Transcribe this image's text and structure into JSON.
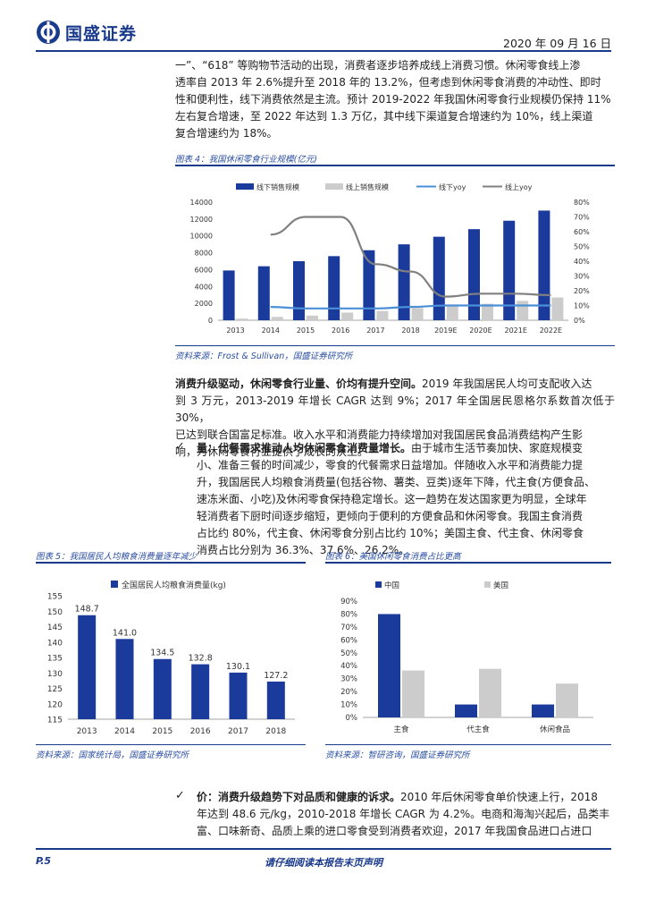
{
  "header": {
    "company": "国盛证券",
    "date": "2020 年 09 月 16 日"
  },
  "intro_paragraph": [
    "一”、“618” 等购物节活动的出现，消费者逐步培养成线上消费习惯。休闲零食线上渗",
    "透率自 2013 年 2.6%提升至 2018 年的 13.2%，但考虑到休闲零食消费的冲动性、即时",
    "性和便利性，线下消费依然是主流。预计 2019-2022 年我国休闲零食行业规模仍保持 11%",
    "左右复合增速，至 2022 年达到 1.3 万亿，其中线下渠道复合增速约为 10%，线上渠道",
    "复合增速约为 18%。"
  ],
  "figure4": {
    "title": "图表 4：我国休闲零食行业规模(亿元)",
    "source": "资料来源：Frost & Sullivan，国盛证券研究所"
  },
  "para_consumption": {
    "lead": "消费升级驱动，休闲零食行业量、价均有提升空间。",
    "lines": [
      "2019 年我国居民人均可支配收入达",
      "到 3 万元，2013-2019 年增长 CAGR 达到 9%；2017 年全国居民恩格尔系数首次低于 30%，",
      "已达到联合国富足标准。收入水平和消费能力持续增加对我国居民食品消费结构产生影",
      "响，为休闲零食行业提供了成长的沃土。"
    ]
  },
  "bullet_volume": {
    "check": "✓",
    "lead": "量：代餐需求推动人均休闲零食消费量增长。",
    "lines": [
      "由于城市生活节奏加快、家庭规模变",
      "小、准备三餐的时间减少，零食的代餐需求日益增加。伴随收入水平和消费能力提",
      "升，我国居民人均粮食消费量(包括谷物、薯类、豆类)逐年下降，代主食(方便食品、",
      "速冻米面、小吃)及休闲零食保持稳定增长。这一趋势在发达国家更为明显，全球年",
      "轻消费者下厨时间逐步缩短，更倾向于便利的方便食品和休闲零食。我国主食消费",
      "占比约 80%，代主食、休闲零食分别占比约 10%；美国主食、代主食、休闲零食",
      "消费占比分别为 36.3%、37.6%、26.2%。"
    ]
  },
  "figure5": {
    "title": "图表 5：我国居民人均粮食消费量逐年减少",
    "source": "资料来源：国家统计局，国盛证券研究所"
  },
  "figure6": {
    "title": "图表 6：美国休闲零食消费占比更高",
    "source": "资料来源：智研咨询，国盛证券研究所"
  },
  "bullet_price": {
    "check": "✓",
    "lead": "价：消费升级趋势下对品质和健康的诉求。",
    "lines": [
      "2010 年后休闲零食单价快速上行，2018",
      "年达到 48.6 元/kg，2010-2018 年增长 CAGR 为 4.2%。电商和海淘兴起后，品类丰",
      "富、口味新奇、品质上乘的进口零食受到消费者欢迎，2017 年我国食品进口占进口"
    ]
  },
  "footer": {
    "page": "P.5",
    "note": "请仔细阅读本报告末页声明"
  },
  "chart_data": [
    {
      "type": "bar",
      "categories": [
        "2013",
        "2014",
        "2015",
        "2016",
        "2017",
        "2018",
        "2019E",
        "2020E",
        "2021E",
        "2022E"
      ],
      "series": [
        {
          "name": "线下销售规模",
          "type": "bar",
          "axis": "left",
          "color": "#1a3a9c",
          "values": [
            5900,
            6400,
            7000,
            7600,
            8300,
            9000,
            9900,
            10800,
            11800,
            13000
          ]
        },
        {
          "name": "线上销售规模",
          "type": "bar",
          "axis": "left",
          "color": "#cccccc",
          "values": [
            200,
            400,
            550,
            900,
            1100,
            1450,
            1700,
            1950,
            2300,
            2700
          ]
        },
        {
          "name": "线下yoy",
          "type": "line",
          "axis": "right",
          "color": "#4a8fd8",
          "x": [
            2014,
            2015,
            2016,
            2017,
            2018,
            2019,
            2020,
            2021,
            2022
          ],
          "values": [
            9,
            8,
            8,
            8,
            9,
            10,
            10,
            10,
            10
          ]
        },
        {
          "name": "线上yoy",
          "type": "line",
          "axis": "right",
          "color": "#808080",
          "x": [
            2014,
            2015,
            2016,
            2017,
            2018,
            2019,
            2020,
            2021,
            2022
          ],
          "values": [
            58,
            70,
            70,
            38,
            33,
            16,
            18,
            18,
            17
          ]
        }
      ],
      "ylim": [
        0,
        14000
      ],
      "yticks": [
        0,
        2000,
        4000,
        6000,
        8000,
        10000,
        12000,
        14000
      ],
      "y2lim": [
        0,
        80
      ],
      "y2ticks": [
        "0%",
        "10%",
        "20%",
        "30%",
        "40%",
        "50%",
        "60%",
        "70%",
        "80%"
      ],
      "legend": "top"
    },
    {
      "type": "bar",
      "categories": [
        "2013",
        "2014",
        "2015",
        "2016",
        "2017",
        "2018"
      ],
      "series": [
        {
          "name": "全国居民人均粮食消费量(kg)",
          "color": "#1a3a9c",
          "values": [
            148.7,
            141.0,
            134.5,
            132.8,
            130.1,
            127.2
          ]
        }
      ],
      "data_labels": [
        "148.7",
        "141.0",
        "134.5",
        "132.8",
        "130.1",
        "127.2"
      ],
      "ylim": [
        115,
        155
      ],
      "yticks": [
        115,
        120,
        125,
        130,
        135,
        140,
        145,
        150,
        155
      ],
      "legend": "top"
    },
    {
      "type": "bar",
      "categories": [
        "主食",
        "代主食",
        "休闲食品"
      ],
      "series": [
        {
          "name": "中国",
          "color": "#1a3a9c",
          "values": [
            80,
            10,
            10
          ]
        },
        {
          "name": "美国",
          "color": "#cccccc",
          "values": [
            36.3,
            37.6,
            26.2
          ]
        }
      ],
      "ylim": [
        0,
        90
      ],
      "yticks": [
        "0%",
        "10%",
        "20%",
        "30%",
        "40%",
        "50%",
        "60%",
        "70%",
        "80%",
        "90%"
      ],
      "legend": "top-left"
    }
  ]
}
